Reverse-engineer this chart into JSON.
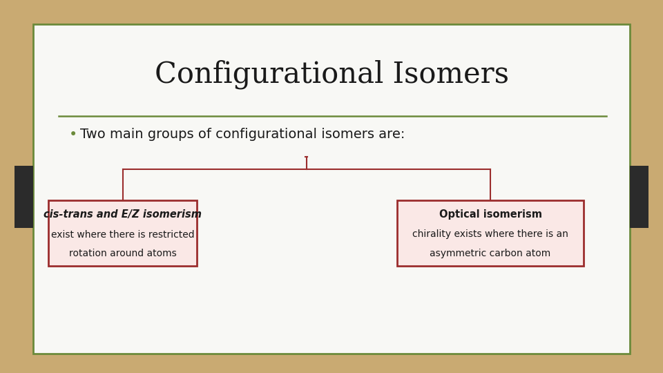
{
  "title": "Configurational Isomers",
  "title_fontsize": 30,
  "bullet_text": "Two main groups of configurational isomers are:",
  "bullet_fontsize": 14,
  "background_outer": "#c9aa72",
  "background_slide": "#f8f8f5",
  "border_color_outer": "#6b8a3a",
  "separator_color": "#6b8a3a",
  "dark_tab_color": "#2b2b2b",
  "box1_title": "cis-trans and E/Z isomerism",
  "box1_line1": "exist where there is restricted",
  "box1_line2": "rotation around atoms",
  "box2_title": "Optical isomerism",
  "box2_line1": "chirality exists where there is an",
  "box2_line2": "asymmetric carbon atom",
  "box_bg": "#fae8e6",
  "box_border": "#9b2d2d",
  "tree_line_color": "#9b2d2d",
  "bullet_color": "#6b8a3a",
  "title_color": "#1a1a1a",
  "text_color": "#1a1a1a"
}
